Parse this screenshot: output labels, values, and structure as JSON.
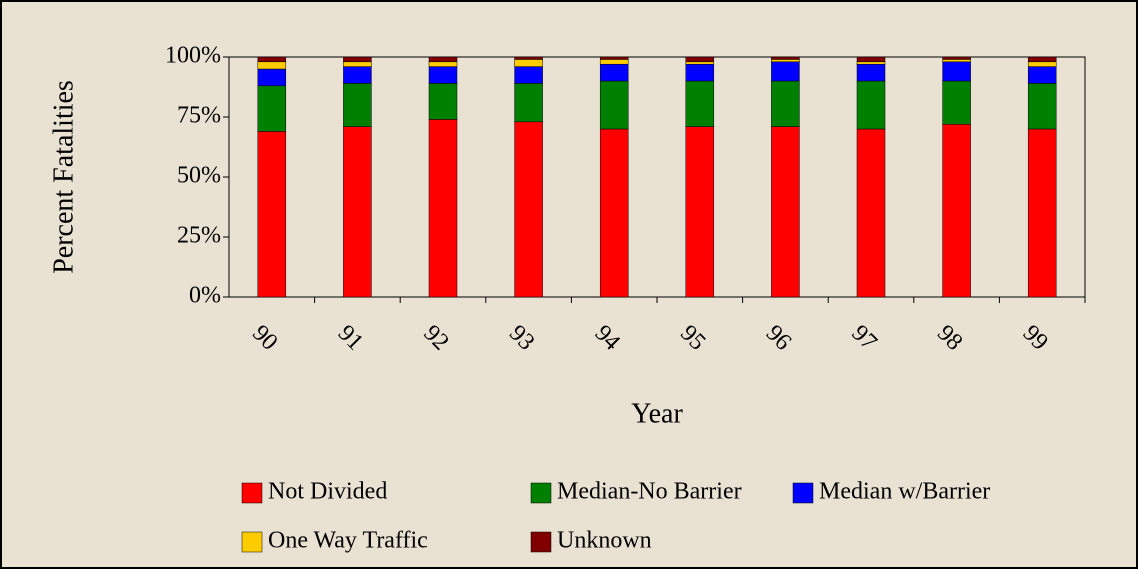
{
  "chart_data": {
    "type": "stacked_bar",
    "y_label": "Percent Fatalities",
    "x_label": "Year",
    "categories": [
      "90",
      "91",
      "92",
      "93",
      "94",
      "95",
      "96",
      "97",
      "98",
      "99"
    ],
    "series": [
      {
        "name": "Not Divided",
        "color": "#ff0000",
        "values": [
          69,
          71,
          74,
          73,
          70,
          71,
          71,
          70,
          72,
          70
        ]
      },
      {
        "name": "Median-No Barrier",
        "color": "#008000",
        "values": [
          19,
          18,
          15,
          16,
          20,
          19,
          19,
          20,
          18,
          19
        ]
      },
      {
        "name": "Median w/Barrier",
        "color": "#0000ff",
        "values": [
          7,
          7,
          7,
          7,
          7,
          7,
          8,
          7,
          8,
          7
        ]
      },
      {
        "name": "One Way Traffic",
        "color": "#ffcc00",
        "values": [
          3,
          2,
          2,
          3,
          2,
          1,
          1,
          1,
          1,
          2
        ]
      },
      {
        "name": "Unknown",
        "color": "#800000",
        "values": [
          2,
          2,
          2,
          1,
          1,
          2,
          1,
          2,
          1,
          2
        ]
      }
    ],
    "ylim": [
      0,
      100
    ],
    "yticks": [
      {
        "value": 0,
        "label": "0%"
      },
      {
        "value": 25,
        "label": "25%"
      },
      {
        "value": 50,
        "label": "50%"
      },
      {
        "value": 75,
        "label": "75%"
      },
      {
        "value": 100,
        "label": "100%"
      }
    ],
    "legend": "bottom"
  }
}
